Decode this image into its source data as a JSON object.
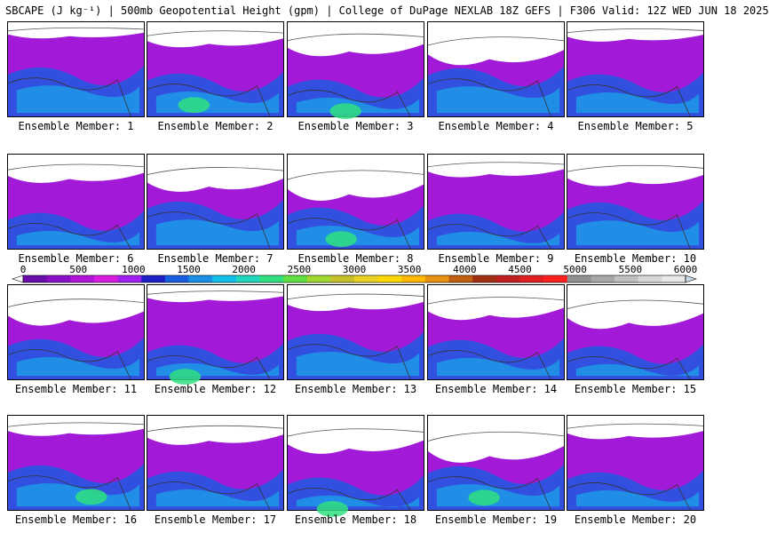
{
  "title": "SBCAPE (J kg⁻¹) | 500mb Geopotential Height (gpm) | College of DuPage NEXLAB 18Z GEFS | F306 Valid: 12Z WED JUN 18 2025",
  "chart_data": {
    "type": "heatmap",
    "title": "SBCAPE (J kg⁻¹) | 500mb Geopotential Height (gpm) | College of DuPage NEXLAB 18Z GEFS | F306 Valid: 12Z WED JUN 18 2025",
    "panels": [
      "Ensemble Member: 1",
      "Ensemble Member: 2",
      "Ensemble Member: 3",
      "Ensemble Member: 4",
      "Ensemble Member: 5",
      "Ensemble Member: 6",
      "Ensemble Member: 7",
      "Ensemble Member: 8",
      "Ensemble Member: 9",
      "Ensemble Member: 10",
      "Ensemble Member: 11",
      "Ensemble Member: 12",
      "Ensemble Member: 13",
      "Ensemble Member: 14",
      "Ensemble Member: 15",
      "Ensemble Member: 16",
      "Ensemble Member: 17",
      "Ensemble Member: 18",
      "Ensemble Member: 19",
      "Ensemble Member: 20"
    ],
    "colorbar": {
      "ticks": [
        "0",
        "500",
        "1000",
        "1500",
        "2000",
        "2500",
        "3000",
        "3500",
        "4000",
        "4500",
        "5000",
        "5500",
        "6000"
      ],
      "range": [
        0,
        6000
      ],
      "colors": [
        "#6a0dad",
        "#8a10c8",
        "#b014d8",
        "#d81ce0",
        "#a020f0",
        "#2020c8",
        "#1a5ee0",
        "#1890e8",
        "#10c0e8",
        "#20d8c0",
        "#30e080",
        "#60e040",
        "#a0d830",
        "#c8c028",
        "#e8d020",
        "#ffd800",
        "#ffb800",
        "#e89010",
        "#c06010",
        "#a03010",
        "#c02020",
        "#e02020",
        "#ff2020",
        "#909090",
        "#a8a8a8",
        "#c0c0c0",
        "#d8d8d8",
        "#e8e8e8"
      ]
    }
  }
}
